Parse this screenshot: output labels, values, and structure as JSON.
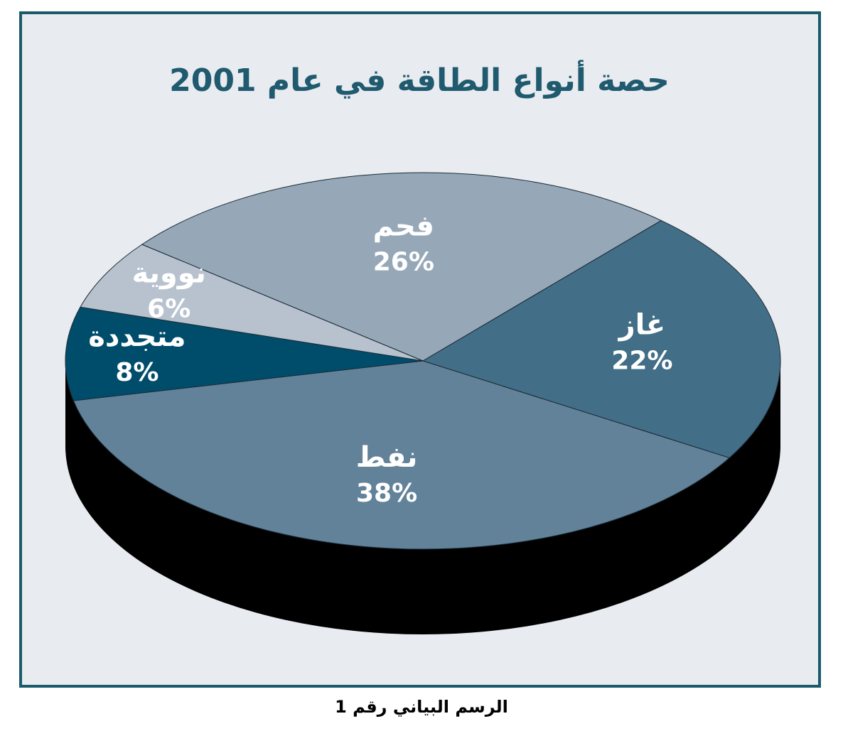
{
  "chart_data": {
    "type": "pie",
    "title": "حصة أنواع الطاقة في عام 2001",
    "caption": "الرسم البياني رقم 1",
    "categories": [
      "فحم",
      "غاز",
      "نفط",
      "متجددة",
      "نووية"
    ],
    "values": [
      26,
      22,
      38,
      8,
      6
    ],
    "value_labels": [
      "26%",
      "22%",
      "38%",
      "8%",
      "6%"
    ],
    "colors": [
      "#96a8b8",
      "#426e87",
      "#628299",
      "#004d6b",
      "#b8c2cf"
    ]
  }
}
